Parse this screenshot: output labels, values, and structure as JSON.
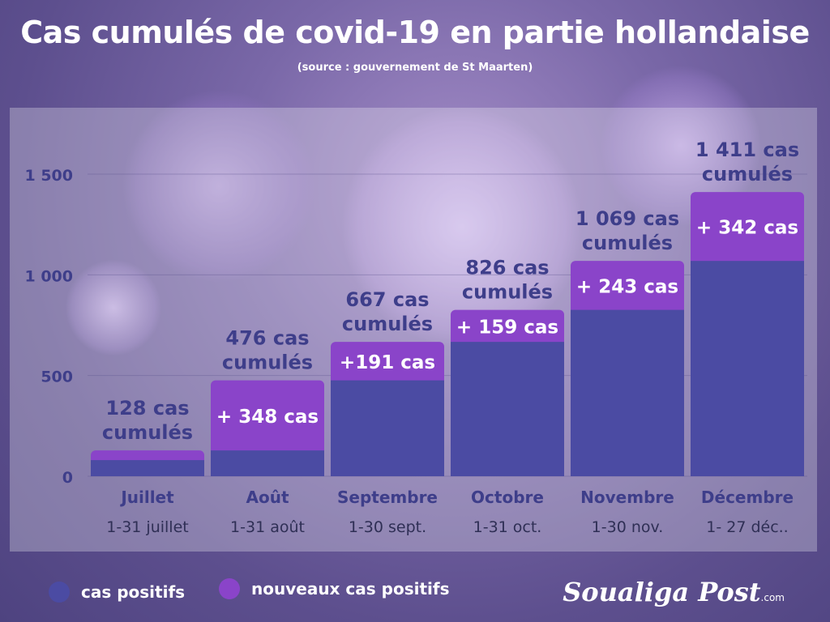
{
  "title": "Cas cumulés de covid-19 en partie hollandaise",
  "subtitle": "(source : gouvernement de St Maarten)",
  "colors": {
    "base": "#4b4ba3",
    "new": "#8a44c9",
    "axis_text": "#3e3e8a"
  },
  "legend": [
    {
      "label": "cas positifs",
      "color": "#4b4ba3"
    },
    {
      "label": "nouveaux cas positifs",
      "color": "#8a44c9"
    }
  ],
  "brand": {
    "name": "Soualiga Post",
    "suffix": ".com"
  },
  "chart_data": {
    "type": "bar",
    "stacked": true,
    "categories": [
      "Juillet",
      "Août",
      "Septembre",
      "Octobre",
      "Novembre",
      "Décembre"
    ],
    "periods": [
      "1-31 juillet",
      "1-31 août",
      "1-30 sept.",
      "1-31 oct.",
      "1-30 nov.",
      "1- 27 déc.."
    ],
    "series": [
      {
        "name": "cas positifs",
        "values": [
          80,
          128,
          476,
          667,
          826,
          1069
        ]
      },
      {
        "name": "nouveaux cas positifs",
        "values": [
          48,
          348,
          191,
          159,
          243,
          342
        ]
      }
    ],
    "totals": [
      128,
      476,
      667,
      826,
      1069,
      1411
    ],
    "total_labels": [
      [
        "128 cas",
        "cumulés"
      ],
      [
        "476 cas",
        "cumulés"
      ],
      [
        "667 cas",
        "cumulés"
      ],
      [
        "826 cas",
        "cumulés"
      ],
      [
        "1 069 cas",
        "cumulés"
      ],
      [
        "1 411 cas",
        "cumulés"
      ]
    ],
    "new_labels": [
      "",
      "+ 348 cas",
      "+191 cas",
      "+ 159 cas",
      "+ 243 cas",
      "+ 342 cas"
    ],
    "ylim": [
      0,
      1500
    ],
    "yticks": [
      0,
      500,
      1000,
      1500
    ],
    "ytick_labels": [
      "0",
      "500",
      "1 000",
      "1 500"
    ],
    "grid": true
  }
}
